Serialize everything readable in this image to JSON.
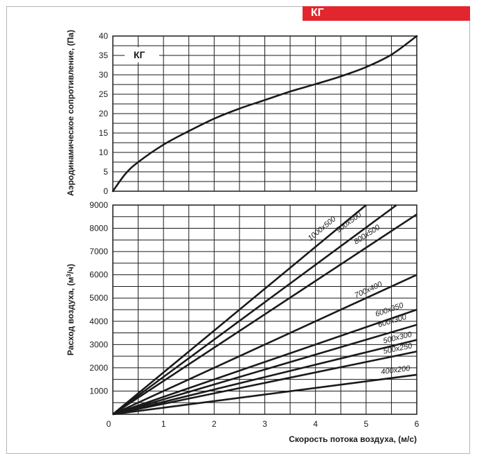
{
  "header": {
    "tag_label": "КГ",
    "tag_color": "#e3262d"
  },
  "chart_data": [
    {
      "type": "line",
      "title": "",
      "inset_label": "КГ",
      "xlabel": "",
      "ylabel": "Аэродинамическое сопротивление, (Па)",
      "xlim": [
        0,
        6
      ],
      "ylim": [
        0,
        40
      ],
      "xticks": [
        0,
        1,
        2,
        3,
        4,
        5,
        6
      ],
      "yticks": [
        0,
        5,
        10,
        15,
        20,
        25,
        30,
        35,
        40
      ],
      "grid": true,
      "series": [
        {
          "x": [
            0,
            0.25,
            0.5,
            1,
            1.5,
            2,
            2.5,
            3,
            3.5,
            4,
            4.5,
            5,
            5.5,
            6
          ],
          "y": [
            0,
            4.5,
            7.5,
            12,
            15.5,
            18.7,
            21.3,
            23.5,
            25.7,
            27.6,
            29.6,
            32,
            35.2,
            40
          ]
        }
      ]
    },
    {
      "type": "line",
      "title": "",
      "xlabel": "Скорость потока воздуха, (м/с)",
      "ylabel_prefix": "Расход воздуха, (м",
      "ylabel_sup": "3",
      "ylabel_suffix": "/ч)",
      "xlim": [
        0,
        6
      ],
      "ylim": [
        0,
        9000
      ],
      "xticks": [
        0,
        1,
        2,
        3,
        4,
        5,
        6
      ],
      "yticks": [
        1000,
        2000,
        3000,
        4000,
        5000,
        6000,
        7000,
        8000,
        9000
      ],
      "grid": true,
      "series": [
        {
          "name": "1000x500",
          "x": [
            0,
            5
          ],
          "y": [
            0,
            9000
          ]
        },
        {
          "name": "900x500",
          "x": [
            0,
            5.6
          ],
          "y": [
            0,
            9000
          ]
        },
        {
          "name": "800x500",
          "x": [
            0,
            6
          ],
          "y": [
            0,
            8600
          ]
        },
        {
          "name": "700x400",
          "x": [
            0,
            6
          ],
          "y": [
            0,
            6000
          ]
        },
        {
          "name": "600x350",
          "x": [
            0,
            6
          ],
          "y": [
            0,
            4500
          ]
        },
        {
          "name": "600x300",
          "x": [
            0,
            6
          ],
          "y": [
            0,
            3850
          ]
        },
        {
          "name": "500x300",
          "x": [
            0,
            6
          ],
          "y": [
            0,
            3200
          ]
        },
        {
          "name": "500x250",
          "x": [
            0,
            6
          ],
          "y": [
            0,
            2700
          ]
        },
        {
          "name": "400x200",
          "x": [
            0,
            6
          ],
          "y": [
            0,
            1700
          ]
        }
      ]
    }
  ]
}
